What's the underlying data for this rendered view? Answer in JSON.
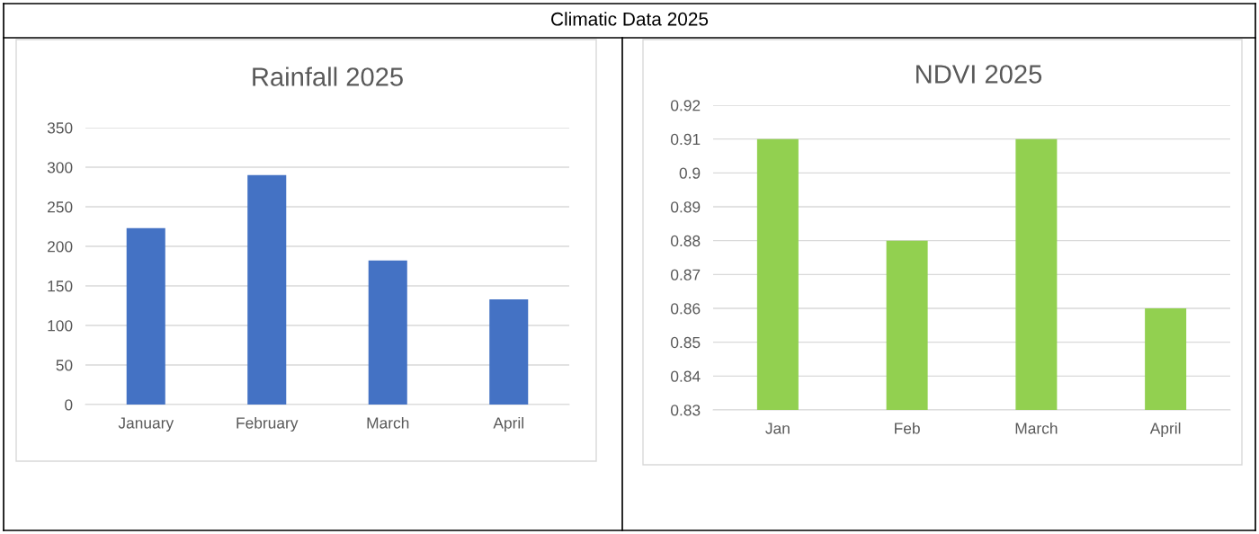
{
  "chart_data": [
    {
      "type": "bar",
      "title": "Rainfall 2025",
      "annotations": [
        "Climatic Data 2025"
      ],
      "categories": [
        "January",
        "February",
        "March",
        "April"
      ],
      "values": [
        223,
        290,
        182,
        133
      ],
      "color": "#4472c4",
      "ylim": [
        0,
        350
      ],
      "yticks": [
        0,
        50,
        100,
        150,
        200,
        250,
        300,
        350
      ],
      "grid": "y"
    },
    {
      "type": "bar",
      "title": "NDVI 2025",
      "categories": [
        "Jan",
        "Feb",
        "March",
        "April"
      ],
      "values": [
        0.91,
        0.88,
        0.91,
        0.86
      ],
      "color": "#92d050",
      "ylim": [
        0.83,
        0.92
      ],
      "yticks": [
        0.83,
        0.84,
        0.85,
        0.86,
        0.87,
        0.88,
        0.89,
        0.9,
        0.91,
        0.92
      ],
      "grid": "y"
    }
  ]
}
